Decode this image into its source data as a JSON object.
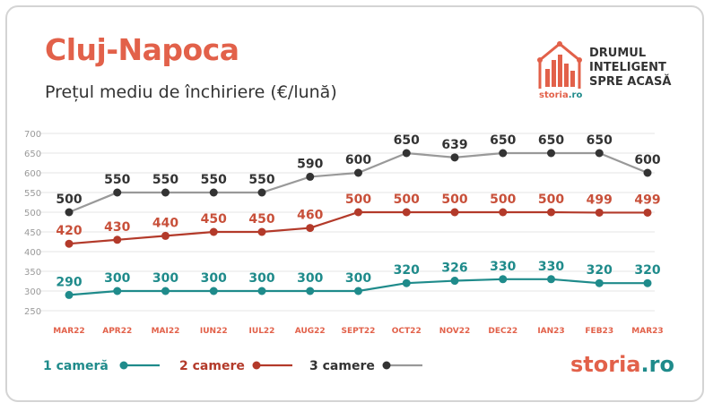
{
  "header": {
    "title": "Cluj-Napoca",
    "subtitle": "Prețul mediu de închiriere (€/lună)"
  },
  "brand": {
    "tagline_lines": [
      "DRUMUL",
      "INTELIGENT",
      "SPRE ACASĂ"
    ],
    "small_name": "storia",
    "small_tld": ".ro",
    "footer_name": "storia",
    "footer_tld": ".ro"
  },
  "colors": {
    "accent": "#e2614a",
    "teal": "#1f8b8b",
    "dark_red": "#b33a2a",
    "dark": "#333333",
    "grey_line": "#999999"
  },
  "chart_data": {
    "type": "line",
    "categories": [
      "MAR22",
      "APR22",
      "MAI22",
      "IUN22",
      "IUL22",
      "AUG22",
      "SEPT22",
      "OCT22",
      "NOV22",
      "DEC22",
      "IAN23",
      "FEB23",
      "MAR23"
    ],
    "ylim": [
      250,
      700
    ],
    "yticks": [
      250,
      300,
      350,
      400,
      450,
      500,
      550,
      600,
      650,
      700
    ],
    "grid": true,
    "legend_position": "bottom",
    "series": [
      {
        "name": "1 cameră",
        "color": "#1f8b8b",
        "label_color": "#1f8b8b",
        "marker": "#1f8b8b",
        "values": [
          290,
          300,
          300,
          300,
          300,
          300,
          300,
          320,
          326,
          330,
          330,
          320,
          320
        ]
      },
      {
        "name": "2 camere",
        "color": "#b33a2a",
        "label_color": "#c8503a",
        "marker": "#b33a2a",
        "values": [
          420,
          430,
          440,
          450,
          450,
          460,
          500,
          500,
          500,
          500,
          500,
          499,
          499
        ]
      },
      {
        "name": "3 camere",
        "color": "#999999",
        "label_color": "#333333",
        "marker": "#333333",
        "values": [
          500,
          550,
          550,
          550,
          550,
          590,
          600,
          650,
          639,
          650,
          650,
          650,
          600
        ]
      }
    ]
  }
}
